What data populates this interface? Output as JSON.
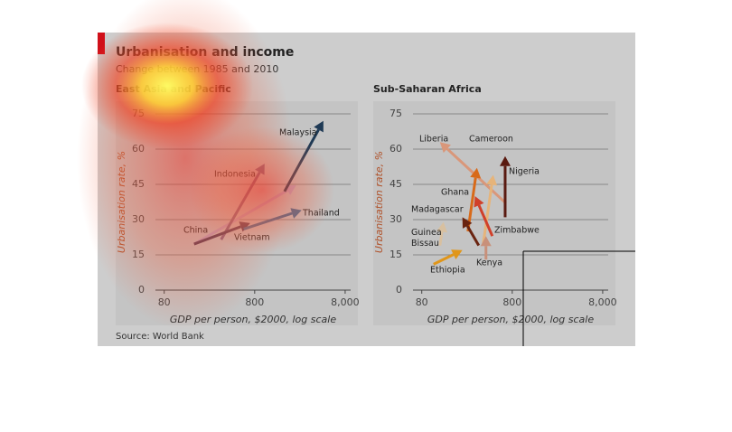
{
  "title": "Urbanisation and income",
  "subtitle": "Change between 1985 and 2010",
  "source": "Source: World Bank",
  "chart_data": [
    {
      "type": "arrow",
      "title": "East Asia and Pacific",
      "xlabel": "GDP per person, $2000, log scale",
      "ylabel": "Urbanisation rate, %",
      "log_x": true,
      "grid": true,
      "xlim": [
        64,
        9200
      ],
      "ylim": [
        0,
        75
      ],
      "xticks": [
        80,
        800,
        {
          "value": 8000,
          "label": "8,000"
        }
      ],
      "yticks": [
        0,
        15,
        30,
        45,
        60,
        75
      ],
      "series": [
        {
          "name": "China",
          "color": "#b9a8c6",
          "x": [
            171,
            2300
          ],
          "values": [
            19.6,
            44.6
          ]
        },
        {
          "name": "Indonesia",
          "color": "#7b6485",
          "x": [
            341,
            1030
          ],
          "values": [
            21.5,
            53.8
          ]
        },
        {
          "name": "Vietnam",
          "color": "#4a3a56",
          "x": [
            171,
            713
          ],
          "values": [
            19.6,
            28.5
          ]
        },
        {
          "name": "Thailand",
          "color": "#3a6c96",
          "x": [
            605,
            2640
          ],
          "values": [
            26,
            34
          ]
        },
        {
          "name": "Malaysia",
          "color": "#1f3a55",
          "x": [
            1710,
            4600
          ],
          "values": [
            42,
            72
          ]
        }
      ]
    },
    {
      "type": "arrow",
      "title": "Sub-Saharan Africa",
      "xlabel": "GDP per person, $2000, log scale",
      "ylabel": "Urbanisation rate, %",
      "log_x": true,
      "grid": true,
      "xlim": [
        64,
        9200
      ],
      "ylim": [
        0,
        75
      ],
      "xticks": [
        80,
        800,
        {
          "value": 8000,
          "label": "8,000"
        }
      ],
      "yticks": [
        0,
        15,
        30,
        45,
        60,
        75
      ],
      "series": [
        {
          "name": "Liberia",
          "color": "#d9977a",
          "x": [
            680,
            127
          ],
          "values": [
            37,
            63
          ]
        },
        {
          "name": "Cameroon",
          "color": "#e6b47a",
          "x": [
            383,
            493
          ],
          "values": [
            20,
            49
          ]
        },
        {
          "name": "Nigeria",
          "color": "#5a1a10",
          "x": [
            668,
            668
          ],
          "values": [
            31,
            57
          ]
        },
        {
          "name": "Ghana",
          "color": "#d86a1a",
          "x": [
            259,
            326
          ],
          "values": [
            25,
            52
          ]
        },
        {
          "name": "Zimbabwe",
          "color": "#d0402a",
          "x": [
            482,
            310
          ],
          "values": [
            23,
            40
          ]
        },
        {
          "name": "Madagascar",
          "color": "#6a2410",
          "x": [
            341,
            225
          ],
          "values": [
            19,
            31
          ]
        },
        {
          "name": "Guinea Bissau",
          "color": "#d8c0a0",
          "x": [
            127,
            139
          ],
          "values": [
            19,
            29
          ]
        },
        {
          "name": "Ethiopia",
          "color": "#e0961a",
          "x": [
            108,
            225
          ],
          "values": [
            11,
            17
          ]
        },
        {
          "name": "Kenya",
          "color": "#c8907a",
          "x": [
            410,
            410
          ],
          "values": [
            13,
            23
          ]
        }
      ]
    }
  ]
}
